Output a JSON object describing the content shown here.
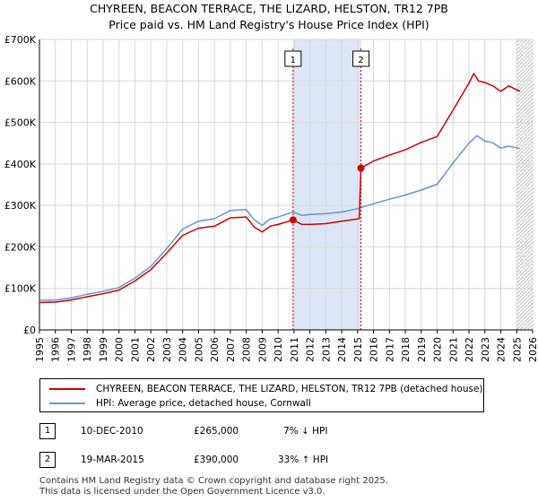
{
  "title_line1": "CHYREEN, BEACON TERRACE, THE LIZARD, HELSTON, TR12 7PB",
  "title_line2": "Price paid vs. HM Land Registry's House Price Index (HPI)",
  "chart_data": {
    "type": "line",
    "ylim": [
      0,
      700000
    ],
    "xlim": [
      1995,
      2026
    ],
    "y_ticks": [
      0,
      100000,
      200000,
      300000,
      400000,
      500000,
      600000,
      700000
    ],
    "y_tick_labels": [
      "£0",
      "£100K",
      "£200K",
      "£300K",
      "£400K",
      "£500K",
      "£600K",
      "£700K"
    ],
    "x_ticks": [
      1995,
      1996,
      1997,
      1998,
      1999,
      2000,
      2001,
      2002,
      2003,
      2004,
      2005,
      2006,
      2007,
      2008,
      2009,
      2010,
      2011,
      2012,
      2013,
      2014,
      2015,
      2016,
      2017,
      2018,
      2019,
      2020,
      2021,
      2022,
      2023,
      2024,
      2025,
      2026
    ],
    "grid": true,
    "shaded_period": [
      2010.94,
      2015.21
    ],
    "forecast_start": 2025.0,
    "series": [
      {
        "name": "CHYREEN, BEACON TERRACE, THE LIZARD, HELSTON, TR12 7PB (detached house)",
        "color": "#cc0000",
        "x": [
          1995,
          1996,
          1997,
          1998,
          1999,
          2000,
          2001,
          2002,
          2003,
          2004,
          2005,
          2006,
          2007,
          2008,
          2008.5,
          2009,
          2009.5,
          2010,
          2010.94,
          2011.5,
          2012,
          2013,
          2014,
          2015.1,
          2015.21,
          2016,
          2017,
          2018,
          2019,
          2020,
          2021,
          2022,
          2022.3,
          2022.6,
          2023,
          2023.5,
          2024,
          2024.5,
          2025.2
        ],
        "y": [
          66000,
          67000,
          72000,
          80000,
          87000,
          96000,
          118000,
          145000,
          185000,
          228000,
          245000,
          250000,
          270000,
          272000,
          248000,
          236000,
          250000,
          254000,
          265000,
          254000,
          254000,
          256000,
          262000,
          268000,
          390000,
          407000,
          421000,
          434000,
          452000,
          466000,
          530000,
          595000,
          618000,
          600000,
          596000,
          588000,
          575000,
          588000,
          575000
        ]
      },
      {
        "name": "HPI: Average price, detached house, Cornwall",
        "color": "#6a93d4",
        "x": [
          1995,
          1996,
          1997,
          1998,
          1999,
          2000,
          2001,
          2002,
          2003,
          2004,
          2005,
          2006,
          2007,
          2008,
          2008.5,
          2009,
          2009.5,
          2010,
          2010.94,
          2011.5,
          2012,
          2013,
          2014,
          2015,
          2016,
          2017,
          2018,
          2019,
          2020,
          2021,
          2022,
          2022.5,
          2023,
          2023.5,
          2024,
          2024.5,
          2025.2
        ],
        "y": [
          71000,
          72000,
          77000,
          86000,
          93000,
          102000,
          125000,
          153000,
          196000,
          243000,
          262000,
          268000,
          288000,
          290000,
          265000,
          252000,
          267000,
          272000,
          284000,
          276000,
          278000,
          280000,
          284000,
          292000,
          304000,
          315000,
          325000,
          337000,
          351000,
          402000,
          450000,
          468000,
          455000,
          451000,
          438000,
          443000,
          437000
        ]
      }
    ],
    "annotations": [
      {
        "label": "1",
        "x": 2010.94,
        "y": 265000
      },
      {
        "label": "2",
        "x": 2015.21,
        "y": 390000
      }
    ]
  },
  "legend": {
    "property_label": "CHYREEN, BEACON TERRACE, THE LIZARD, HELSTON, TR12 7PB (detached house)",
    "hpi_label": "HPI: Average price, detached house, Cornwall"
  },
  "transactions": [
    {
      "num": "1",
      "date": "10-DEC-2010",
      "price": "£265,000",
      "hpi": "7% ↓ HPI"
    },
    {
      "num": "2",
      "date": "19-MAR-2015",
      "price": "£390,000",
      "hpi": "33% ↑ HPI"
    }
  ],
  "footer_line1": "Contains HM Land Registry data © Crown copyright and database right 2025.",
  "footer_line2": "This data is licensed under the Open Government Licence v3.0.",
  "colors": {
    "property": "#cc0000",
    "hpi": "#6a93d4",
    "shade": "#dde6f7",
    "grid": "#d8d8d8"
  }
}
